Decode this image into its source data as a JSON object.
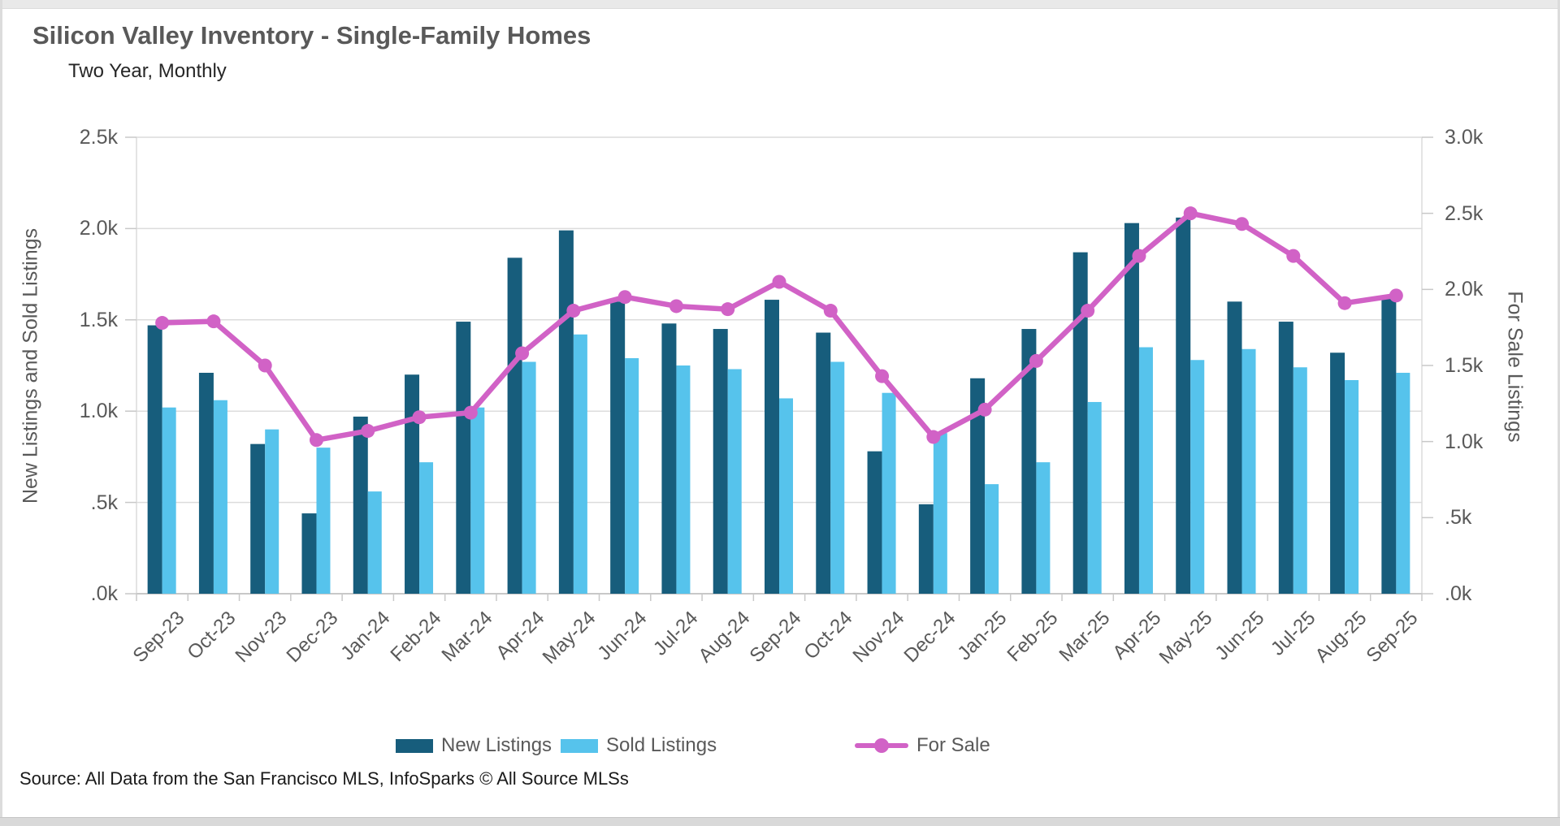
{
  "window": {
    "title": "Silicon Valley Inventory - Single-Family Homes",
    "subtitle": "Two Year, Monthly",
    "source": "Source: All Data from the San Francisco MLS, InfoSparks © All Source MLSs"
  },
  "left_axis": {
    "title": "New Listings and Sold Listings",
    "tick_labels": [
      "2.5k",
      "2.0k",
      "1.5k",
      "1.0k",
      ".5k",
      ".0k"
    ],
    "tick_values": [
      2.5,
      2.0,
      1.5,
      1.0,
      0.5,
      0.0
    ]
  },
  "right_axis": {
    "title": "For Sale Listings",
    "tick_labels": [
      "3.0k",
      "2.5k",
      "2.0k",
      "1.5k",
      "1.0k",
      ".5k",
      ".0k"
    ],
    "tick_values": [
      3.0,
      2.5,
      2.0,
      1.5,
      1.0,
      0.5,
      0.0
    ]
  },
  "legend": [
    {
      "label": "New Listings",
      "type": "bar",
      "color": "#175d7c"
    },
    {
      "label": "Sold Listings",
      "type": "bar",
      "color": "#56c3ec"
    },
    {
      "label": "For Sale",
      "type": "line",
      "color": "#d162c6"
    }
  ],
  "colors": {
    "grid": "#dcdcdc",
    "axis_line": "#c8c8c8",
    "tick": "#c8c8c8",
    "new_listings": "#175d7c",
    "sold_listings": "#56c3ec",
    "for_sale": "#d162c6"
  },
  "chart_data": {
    "type": "bar+line",
    "title": "Silicon Valley Inventory - Single-Family Homes",
    "subtitle": "Two Year, Monthly",
    "units": "k",
    "grid": true,
    "legend_position": "bottom",
    "left_ylim": [
      0,
      2.5
    ],
    "right_ylim": [
      0,
      3.0
    ],
    "categories": [
      "Sep-23",
      "Oct-23",
      "Nov-23",
      "Dec-23",
      "Jan-24",
      "Feb-24",
      "Mar-24",
      "Apr-24",
      "May-24",
      "Jun-24",
      "Jul-24",
      "Aug-24",
      "Sep-24",
      "Oct-24",
      "Nov-24",
      "Dec-24",
      "Jan-25",
      "Feb-25",
      "Mar-25",
      "Apr-25",
      "May-25",
      "Jun-25",
      "Jul-25",
      "Aug-25",
      "Sep-25"
    ],
    "series": [
      {
        "name": "New Listings",
        "type": "bar",
        "axis": "left",
        "color": "#175d7c",
        "values": [
          1.47,
          1.21,
          0.82,
          0.44,
          0.97,
          1.2,
          1.49,
          1.84,
          1.99,
          1.6,
          1.48,
          1.45,
          1.61,
          1.43,
          0.78,
          0.49,
          1.18,
          1.45,
          1.87,
          2.03,
          2.06,
          1.6,
          1.49,
          1.32,
          1.63
        ]
      },
      {
        "name": "Sold Listings",
        "type": "bar",
        "axis": "left",
        "color": "#56c3ec",
        "values": [
          1.02,
          1.06,
          0.9,
          0.8,
          0.56,
          0.72,
          1.02,
          1.27,
          1.42,
          1.29,
          1.25,
          1.23,
          1.07,
          1.27,
          1.1,
          0.88,
          0.6,
          0.72,
          1.05,
          1.35,
          1.28,
          1.34,
          1.24,
          1.17,
          1.21
        ]
      },
      {
        "name": "For Sale",
        "type": "line",
        "axis": "right",
        "color": "#d162c6",
        "values": [
          1.78,
          1.79,
          1.5,
          1.01,
          1.07,
          1.16,
          1.19,
          1.58,
          1.86,
          1.95,
          1.89,
          1.87,
          2.05,
          1.86,
          1.43,
          1.03,
          1.21,
          1.53,
          1.86,
          2.22,
          2.5,
          2.43,
          2.22,
          1.91,
          1.96
        ]
      }
    ]
  }
}
